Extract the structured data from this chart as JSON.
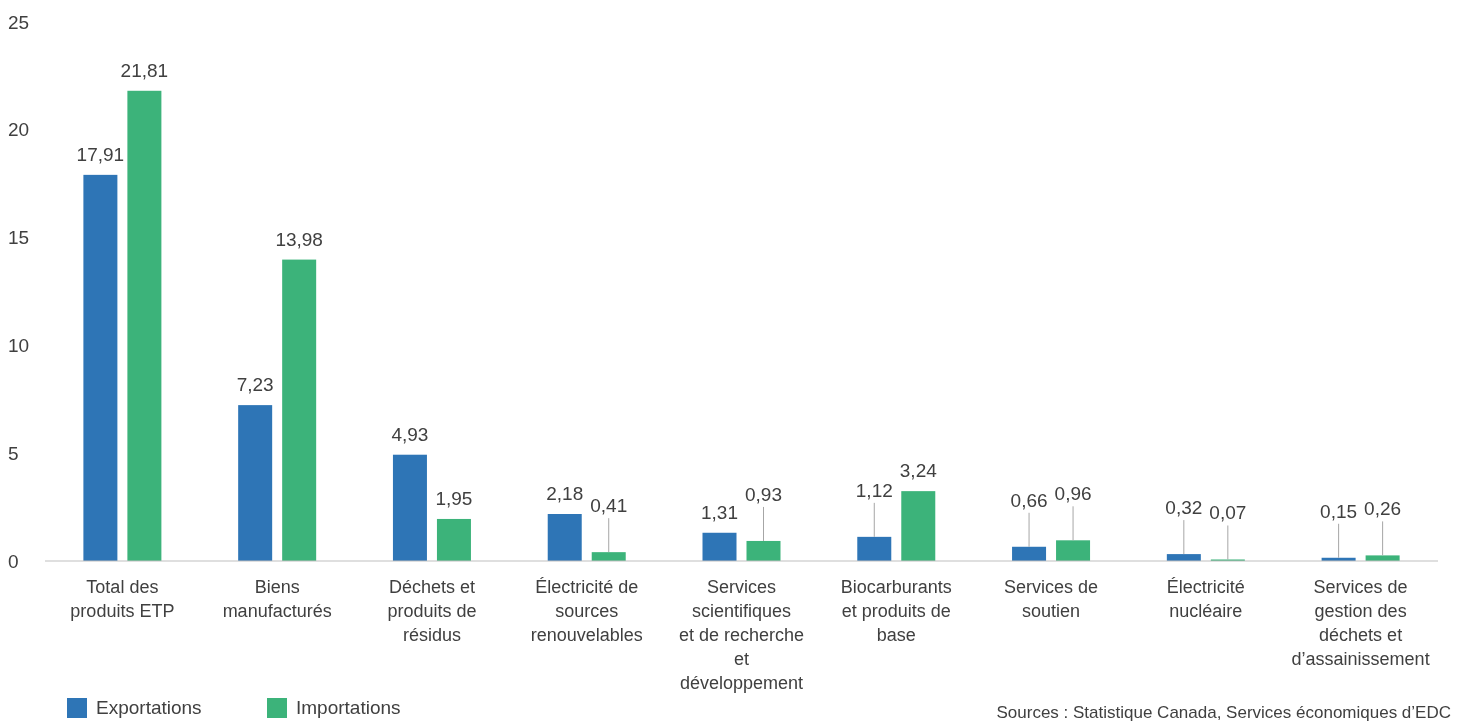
{
  "chart_data": {
    "type": "bar",
    "categories": [
      "Total des produits ETP",
      "Biens manufacturés",
      "Déchets et produits de résidus",
      "Électricité de sources renouvelables",
      "Services scientifiques et de recherche et développement",
      "Biocarburants et produits de base",
      "Services de soutien",
      "Électricité nucléaire",
      "Services de gestion des déchets et d’assainissement"
    ],
    "series": [
      {
        "name": "Exportations",
        "color": "#2e75b6",
        "values": [
          17.91,
          7.23,
          4.93,
          2.18,
          1.31,
          1.12,
          0.66,
          0.32,
          0.15
        ],
        "value_labels": [
          "17,91",
          "7,23",
          "4,93",
          "2,18",
          "1,31",
          "1,12",
          "0,66",
          "0,32",
          "0,15"
        ]
      },
      {
        "name": "Importations",
        "color": "#3cb37a",
        "values": [
          21.81,
          13.98,
          1.95,
          0.41,
          0.93,
          3.24,
          0.96,
          0.07,
          0.26
        ],
        "value_labels": [
          "21,81",
          "13,98",
          "1,95",
          "0,41",
          "0,93",
          "3,24",
          "0,96",
          "0,07",
          "0,26"
        ]
      }
    ],
    "ylim": [
      0,
      25
    ],
    "yticks": [
      0,
      5,
      10,
      15,
      20,
      25
    ],
    "grid": false,
    "legend": "bottom left",
    "annotations": [
      "Sources : Statistique Canada, Services économiques d’EDC"
    ]
  }
}
